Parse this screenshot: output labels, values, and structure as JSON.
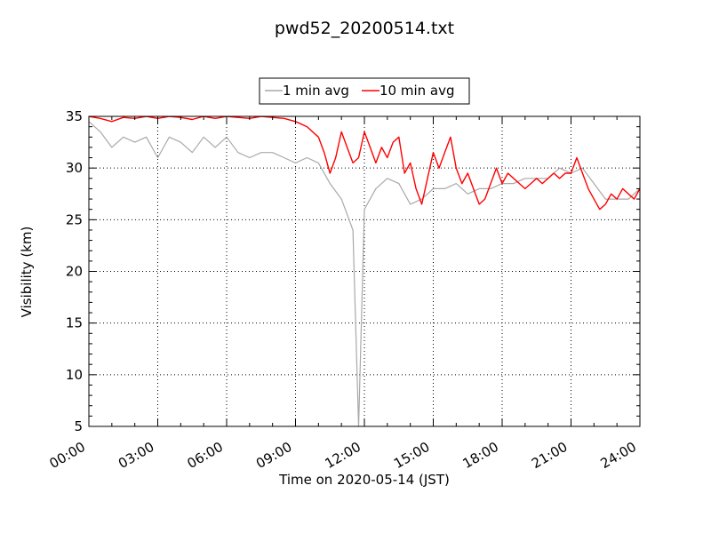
{
  "chart_data": {
    "type": "line",
    "title": "pwd52_20200514.txt",
    "xlabel": "Time on 2020-05-14 (JST)",
    "ylabel": "Visibility (km)",
    "xlim": [
      0,
      24
    ],
    "ylim": [
      5,
      35
    ],
    "x_ticks": [
      "00:00",
      "03:00",
      "06:00",
      "09:00",
      "12:00",
      "15:00",
      "18:00",
      "21:00",
      "24:00"
    ],
    "y_ticks": [
      "5",
      "10",
      "15",
      "20",
      "25",
      "30",
      "35"
    ],
    "grid": true,
    "legend_position": "top-center",
    "series": [
      {
        "name": "1 min avg",
        "color": "#a9a9a9",
        "x_unit": "hours since 00:00 JST",
        "x": [
          0.0,
          0.5,
          1.0,
          1.5,
          2.0,
          2.5,
          3.0,
          3.5,
          4.0,
          4.5,
          5.0,
          5.5,
          6.0,
          6.5,
          7.0,
          7.5,
          8.0,
          8.5,
          9.0,
          9.5,
          10.0,
          10.5,
          11.0,
          11.5,
          11.75,
          12.0,
          12.5,
          13.0,
          13.5,
          14.0,
          14.5,
          15.0,
          15.5,
          16.0,
          16.5,
          17.0,
          17.5,
          18.0,
          18.5,
          19.0,
          19.5,
          20.0,
          20.5,
          21.0,
          21.5,
          22.0,
          22.5,
          23.0,
          23.5,
          24.0
        ],
        "y": [
          34.5,
          33.5,
          32.0,
          33.0,
          32.5,
          33.0,
          31.0,
          33.0,
          32.5,
          31.5,
          33.0,
          32.0,
          33.0,
          31.5,
          31.0,
          31.5,
          31.5,
          31.0,
          30.5,
          31.0,
          30.5,
          28.5,
          27.0,
          24.0,
          5.0,
          26.0,
          28.0,
          29.0,
          28.5,
          26.5,
          27.0,
          28.0,
          28.0,
          28.5,
          27.5,
          28.0,
          28.0,
          28.5,
          28.5,
          29.0,
          29.0,
          29.0,
          30.0,
          29.5,
          30.0,
          28.5,
          27.0,
          27.0,
          27.0,
          28.0
        ]
      },
      {
        "name": "10 min avg",
        "color": "#ff0000",
        "x_unit": "hours since 00:00 JST",
        "x": [
          0.0,
          0.5,
          1.0,
          1.5,
          2.0,
          2.5,
          3.0,
          3.5,
          4.0,
          4.5,
          5.0,
          5.5,
          6.0,
          6.5,
          7.0,
          7.5,
          8.0,
          8.5,
          9.0,
          9.5,
          10.0,
          10.25,
          10.5,
          10.75,
          11.0,
          11.25,
          11.5,
          11.75,
          12.0,
          12.25,
          12.5,
          12.75,
          13.0,
          13.25,
          13.5,
          13.75,
          14.0,
          14.25,
          14.5,
          14.75,
          15.0,
          15.25,
          15.5,
          15.75,
          16.0,
          16.25,
          16.5,
          16.75,
          17.0,
          17.25,
          17.5,
          17.75,
          18.0,
          18.25,
          18.5,
          18.75,
          19.0,
          19.25,
          19.5,
          19.75,
          20.0,
          20.25,
          20.5,
          20.75,
          21.0,
          21.25,
          21.5,
          21.75,
          22.0,
          22.25,
          22.5,
          22.75,
          23.0,
          23.25,
          23.5,
          23.75,
          24.0
        ],
        "y": [
          35.0,
          34.8,
          34.5,
          34.9,
          34.8,
          35.0,
          34.8,
          35.0,
          34.9,
          34.7,
          35.0,
          34.8,
          35.0,
          34.9,
          34.8,
          35.0,
          34.9,
          34.8,
          34.5,
          34.0,
          33.0,
          31.5,
          29.5,
          31.0,
          33.5,
          32.0,
          30.5,
          31.0,
          33.5,
          32.0,
          30.5,
          32.0,
          31.0,
          32.5,
          33.0,
          29.5,
          30.5,
          28.0,
          26.5,
          29.0,
          31.5,
          30.0,
          31.5,
          33.0,
          30.0,
          28.5,
          29.5,
          28.0,
          26.5,
          27.0,
          28.5,
          30.0,
          28.5,
          29.5,
          29.0,
          28.5,
          28.0,
          28.5,
          29.0,
          28.5,
          29.0,
          29.5,
          29.0,
          29.5,
          29.5,
          31.0,
          29.5,
          28.0,
          27.0,
          26.0,
          26.5,
          27.5,
          27.0,
          28.0,
          27.5,
          27.0,
          28.0
        ]
      }
    ]
  }
}
